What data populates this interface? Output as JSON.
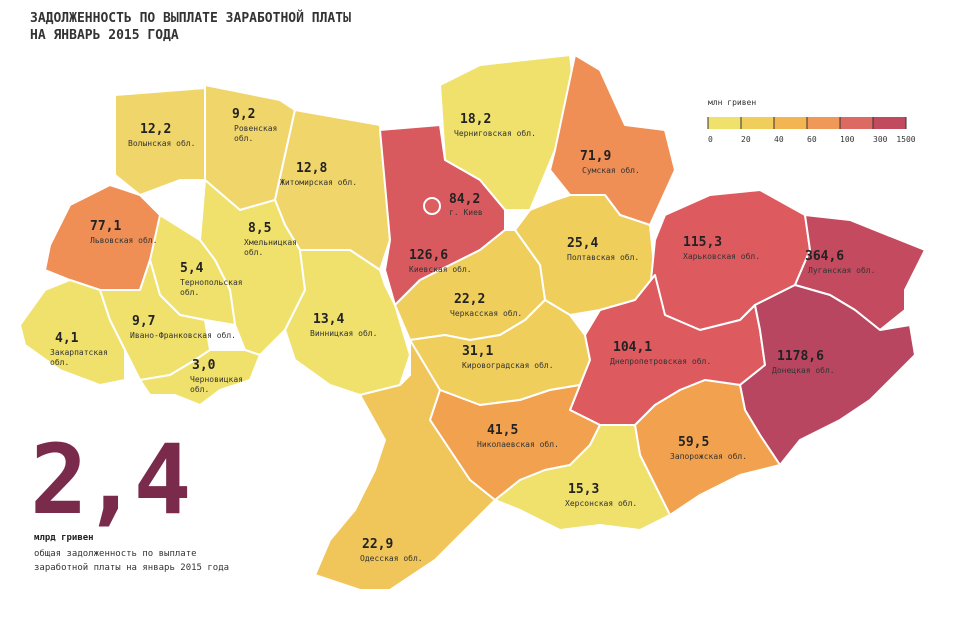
{
  "title_lines": [
    "ЗАДОЛЖЕННОСТЬ ПО ВЫПЛАТЕ ЗАРАБОТНОЙ ПЛАТЫ",
    "НА ЯНВАРЬ 2015 ГОДА"
  ],
  "legend": {
    "unit": "млн гривен",
    "ticks": [
      "0",
      "20",
      "40",
      "60",
      "100",
      "300",
      "1500"
    ],
    "colors": [
      "#efe16c",
      "#f0ce5c",
      "#f2b552",
      "#ef9858",
      "#dd6a62",
      "#c24a5e"
    ]
  },
  "regions": [
    {
      "id": "volyn",
      "value": "12,2",
      "name": "Волынская обл.",
      "color": "#f0d66a"
    },
    {
      "id": "rivne",
      "value": "9,2",
      "name": "Ровенская обл.",
      "color": "#f0d66a"
    },
    {
      "id": "chernihiv",
      "value": "18,2",
      "name": "Черниговская обл.",
      "color": "#efe16c"
    },
    {
      "id": "sumy",
      "value": "71,9",
      "name": "Сумская обл.",
      "color": "#ef8e55"
    },
    {
      "id": "zhytomyr",
      "value": "12,8",
      "name": "Житомирская обл.",
      "color": "#f0d66a"
    },
    {
      "id": "kyiv-city",
      "value": "84,2",
      "name": "г. Киев",
      "color": "#dd6060"
    },
    {
      "id": "kyiv-oblast",
      "value": "126,6",
      "name": "Киевская обл.",
      "color": "#d85a5f"
    },
    {
      "id": "lviv",
      "value": "77,1",
      "name": "Львовская обл.",
      "color": "#ef8e55"
    },
    {
      "id": "khmelnytskyi",
      "value": "8,5",
      "name": "Хмельницкая обл.",
      "color": "#efe16c"
    },
    {
      "id": "ternopil",
      "value": "5,4",
      "name": "Тернопольская обл.",
      "color": "#efe16c"
    },
    {
      "id": "poltava",
      "value": "25,4",
      "name": "Полтавская обл.",
      "color": "#f0ce5c"
    },
    {
      "id": "kharkiv",
      "value": "115,3",
      "name": "Харьковская обл.",
      "color": "#dd5a5f"
    },
    {
      "id": "luhansk",
      "value": "364,6",
      "name": "Луганская обл.",
      "color": "#c44a5f"
    },
    {
      "id": "zakarpattia",
      "value": "4,1",
      "name": "Закарпатская обл.",
      "color": "#efe16c"
    },
    {
      "id": "ivano-frankivsk",
      "value": "9,7",
      "name": "Ивано-Франковская обл.",
      "color": "#efe16c"
    },
    {
      "id": "vinnytsia",
      "value": "13,4",
      "name": "Винницкая обл.",
      "color": "#efe16c"
    },
    {
      "id": "cherkasy",
      "value": "22,2",
      "name": "Черкасская обл.",
      "color": "#f0ce5c"
    },
    {
      "id": "chernivtsi",
      "value": "3,0",
      "name": "Черновицкая обл.",
      "color": "#efe16c"
    },
    {
      "id": "kirovohrad",
      "value": "31,1",
      "name": "Кировоградская обл.",
      "color": "#f0ce5c"
    },
    {
      "id": "dnipropetrovsk",
      "value": "104,1",
      "name": "Днепропетровская обл.",
      "color": "#dd5a5f"
    },
    {
      "id": "donetsk",
      "value": "1178,6",
      "name": "Донецкая обл.",
      "color": "#b84660"
    },
    {
      "id": "mykolaiv",
      "value": "41,5",
      "name": "Николаевская обл.",
      "color": "#f2a24e"
    },
    {
      "id": "zaporizhzhia",
      "value": "59,5",
      "name": "Запорожская обл.",
      "color": "#f2a24e"
    },
    {
      "id": "kherson",
      "value": "15,3",
      "name": "Херсонская обл.",
      "color": "#efe16c"
    },
    {
      "id": "odesa",
      "value": "22,9",
      "name": "Одесская обл.",
      "color": "#f0c65a"
    }
  ],
  "total": {
    "value": "2,4",
    "unit": "млрд гривен",
    "description": "общая задолженность по выплате заработной платы на январь 2015 года",
    "color": "#7a2a4a"
  }
}
